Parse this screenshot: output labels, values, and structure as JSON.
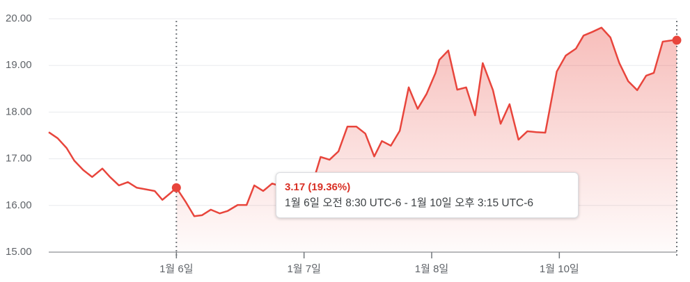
{
  "chart_data": {
    "type": "line",
    "series": [
      {
        "color": "#e8453c",
        "x": [
          0.0,
          0.07,
          0.14,
          0.2,
          0.27,
          0.34,
          0.42,
          0.48,
          0.55,
          0.62,
          0.69,
          0.75,
          0.83,
          0.89,
          0.96,
          1.0,
          1.07,
          1.14,
          1.2,
          1.27,
          1.34,
          1.4,
          1.48,
          1.55,
          1.61,
          1.68,
          1.75,
          1.82,
          1.89,
          1.96,
          2.02,
          2.09,
          2.13,
          2.2,
          2.27,
          2.34,
          2.41,
          2.48,
          2.55,
          2.61,
          2.68,
          2.75,
          2.82,
          2.89,
          2.96,
          3.03,
          3.06,
          3.13,
          3.2,
          3.27,
          3.34,
          3.4,
          3.48,
          3.54,
          3.61,
          3.68,
          3.75,
          3.82,
          3.89,
          3.98,
          4.05,
          4.13,
          4.19,
          4.26,
          4.33,
          4.4,
          4.47,
          4.54,
          4.61,
          4.68,
          4.74,
          4.81,
          4.89,
          4.92
        ],
        "values": [
          17.57,
          17.44,
          17.23,
          16.96,
          16.76,
          16.61,
          16.79,
          16.61,
          16.43,
          16.5,
          16.38,
          16.35,
          16.31,
          16.12,
          16.28,
          16.38,
          16.09,
          15.77,
          15.79,
          15.91,
          15.83,
          15.88,
          16.01,
          16.01,
          16.43,
          16.31,
          16.47,
          16.41,
          16.5,
          16.56,
          16.61,
          16.68,
          17.04,
          16.98,
          17.16,
          17.69,
          17.69,
          17.54,
          17.05,
          17.38,
          17.28,
          17.6,
          18.53,
          18.07,
          18.39,
          18.84,
          19.12,
          19.32,
          18.48,
          18.53,
          17.93,
          19.05,
          18.47,
          17.75,
          18.17,
          17.41,
          17.59,
          17.57,
          17.56,
          18.87,
          19.21,
          19.36,
          19.64,
          19.72,
          19.81,
          19.6,
          19.05,
          18.66,
          18.47,
          18.78,
          18.84,
          19.51,
          19.54,
          19.54
        ]
      }
    ],
    "xlim": [
      0,
      4.92
    ],
    "xticks": [
      {
        "value": 1,
        "label": "1월 6일"
      },
      {
        "value": 2,
        "label": "1월 7일"
      },
      {
        "value": 3,
        "label": "1월 8일"
      },
      {
        "value": 4,
        "label": "1월 10일"
      }
    ],
    "ylim": [
      15,
      20
    ],
    "yticks": [
      {
        "value": 15,
        "label": "15.00"
      },
      {
        "value": 16,
        "label": "16.00"
      },
      {
        "value": 17,
        "label": "17.00"
      },
      {
        "value": 18,
        "label": "18.00"
      },
      {
        "value": 19,
        "label": "19.00"
      },
      {
        "value": 20,
        "label": "20.00"
      }
    ],
    "grid": true,
    "selection": [
      1.0,
      4.92
    ],
    "tooltip": {
      "change": "3.17 (19.36%)",
      "range": "1월 6일 오전 8:30 UTC-6 - 1월 10일 오후 3:15 UTC-6"
    }
  }
}
